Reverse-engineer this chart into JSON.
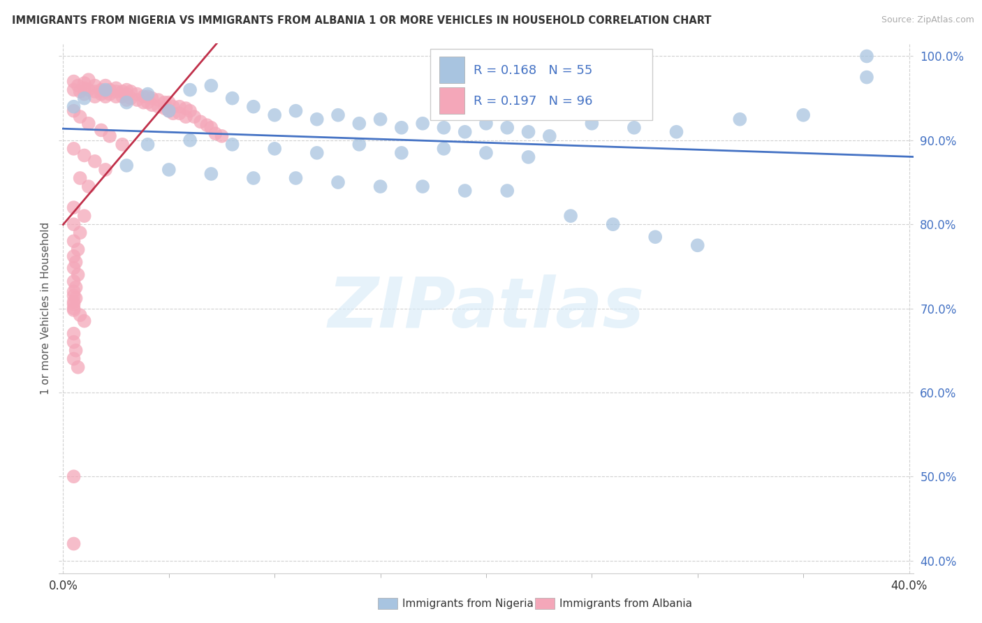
{
  "title": "IMMIGRANTS FROM NIGERIA VS IMMIGRANTS FROM ALBANIA 1 OR MORE VEHICLES IN HOUSEHOLD CORRELATION CHART",
  "source": "Source: ZipAtlas.com",
  "ylabel": "1 or more Vehicles in Household",
  "xlabel_nigeria": "Immigrants from Nigeria",
  "xlabel_albania": "Immigrants from Albania",
  "xlim": [
    -0.002,
    0.402
  ],
  "ylim": [
    0.385,
    1.015
  ],
  "xtick_vals": [
    0.0,
    0.4
  ],
  "ytick_vals": [
    0.4,
    0.5,
    0.6,
    0.7,
    0.8,
    0.9,
    1.0
  ],
  "ytick_labels": [
    "40.0%",
    "50.0%",
    "60.0%",
    "70.0%",
    "80.0%",
    "90.0%",
    "100.0%"
  ],
  "xtick_labels": [
    "0.0%",
    "40.0%"
  ],
  "R_nigeria": 0.168,
  "N_nigeria": 55,
  "R_albania": 0.197,
  "N_albania": 96,
  "color_nigeria": "#a8c4e0",
  "color_albania": "#f4a7b9",
  "trendline_nigeria": "#4472c4",
  "trendline_albania": "#c0304a",
  "legend_text_color": "#4472c4",
  "watermark_color": "#d6eaf8",
  "grid_color": "#d0d0d0",
  "nigeria_x": [
    0.005,
    0.01,
    0.02,
    0.03,
    0.04,
    0.05,
    0.06,
    0.07,
    0.08,
    0.09,
    0.1,
    0.11,
    0.12,
    0.13,
    0.14,
    0.15,
    0.16,
    0.17,
    0.18,
    0.19,
    0.2,
    0.21,
    0.22,
    0.23,
    0.25,
    0.27,
    0.29,
    0.32,
    0.35,
    0.38,
    0.04,
    0.06,
    0.08,
    0.1,
    0.12,
    0.14,
    0.16,
    0.18,
    0.2,
    0.22,
    0.03,
    0.05,
    0.07,
    0.09,
    0.11,
    0.13,
    0.15,
    0.17,
    0.19,
    0.21,
    0.24,
    0.26,
    0.28,
    0.3,
    0.38
  ],
  "nigeria_y": [
    0.94,
    0.95,
    0.96,
    0.945,
    0.955,
    0.935,
    0.96,
    0.965,
    0.95,
    0.94,
    0.93,
    0.935,
    0.925,
    0.93,
    0.92,
    0.925,
    0.915,
    0.92,
    0.915,
    0.91,
    0.92,
    0.915,
    0.91,
    0.905,
    0.92,
    0.915,
    0.91,
    0.925,
    0.93,
    0.975,
    0.895,
    0.9,
    0.895,
    0.89,
    0.885,
    0.895,
    0.885,
    0.89,
    0.885,
    0.88,
    0.87,
    0.865,
    0.86,
    0.855,
    0.855,
    0.85,
    0.845,
    0.845,
    0.84,
    0.84,
    0.81,
    0.8,
    0.785,
    0.775,
    1.0
  ],
  "albania_x": [
    0.005,
    0.005,
    0.007,
    0.008,
    0.01,
    0.01,
    0.01,
    0.012,
    0.012,
    0.015,
    0.015,
    0.015,
    0.018,
    0.018,
    0.02,
    0.02,
    0.02,
    0.022,
    0.022,
    0.025,
    0.025,
    0.025,
    0.028,
    0.028,
    0.03,
    0.03,
    0.03,
    0.032,
    0.032,
    0.035,
    0.035,
    0.038,
    0.038,
    0.04,
    0.04,
    0.042,
    0.042,
    0.045,
    0.045,
    0.048,
    0.048,
    0.05,
    0.05,
    0.052,
    0.052,
    0.055,
    0.055,
    0.058,
    0.058,
    0.06,
    0.062,
    0.065,
    0.068,
    0.07,
    0.072,
    0.075,
    0.005,
    0.008,
    0.012,
    0.018,
    0.022,
    0.028,
    0.005,
    0.01,
    0.015,
    0.02,
    0.008,
    0.012,
    0.005,
    0.01,
    0.005,
    0.008,
    0.005,
    0.007,
    0.005,
    0.006,
    0.005,
    0.007,
    0.005,
    0.006,
    0.005,
    0.005,
    0.005,
    0.008,
    0.01,
    0.005,
    0.006,
    0.005,
    0.005,
    0.005,
    0.005,
    0.006,
    0.005,
    0.007,
    0.005,
    0.005
  ],
  "albania_y": [
    0.97,
    0.96,
    0.965,
    0.958,
    0.968,
    0.962,
    0.955,
    0.972,
    0.96,
    0.965,
    0.958,
    0.952,
    0.96,
    0.955,
    0.965,
    0.958,
    0.952,
    0.96,
    0.955,
    0.962,
    0.958,
    0.952,
    0.958,
    0.952,
    0.96,
    0.955,
    0.948,
    0.958,
    0.95,
    0.955,
    0.948,
    0.952,
    0.945,
    0.952,
    0.945,
    0.95,
    0.942,
    0.948,
    0.94,
    0.945,
    0.938,
    0.945,
    0.935,
    0.94,
    0.932,
    0.94,
    0.932,
    0.938,
    0.928,
    0.935,
    0.928,
    0.922,
    0.918,
    0.915,
    0.908,
    0.905,
    0.935,
    0.928,
    0.92,
    0.912,
    0.905,
    0.895,
    0.89,
    0.882,
    0.875,
    0.865,
    0.855,
    0.845,
    0.82,
    0.81,
    0.8,
    0.79,
    0.78,
    0.77,
    0.762,
    0.755,
    0.748,
    0.74,
    0.732,
    0.725,
    0.715,
    0.708,
    0.7,
    0.692,
    0.685,
    0.72,
    0.712,
    0.705,
    0.698,
    0.67,
    0.66,
    0.65,
    0.64,
    0.63,
    0.5,
    0.42
  ]
}
